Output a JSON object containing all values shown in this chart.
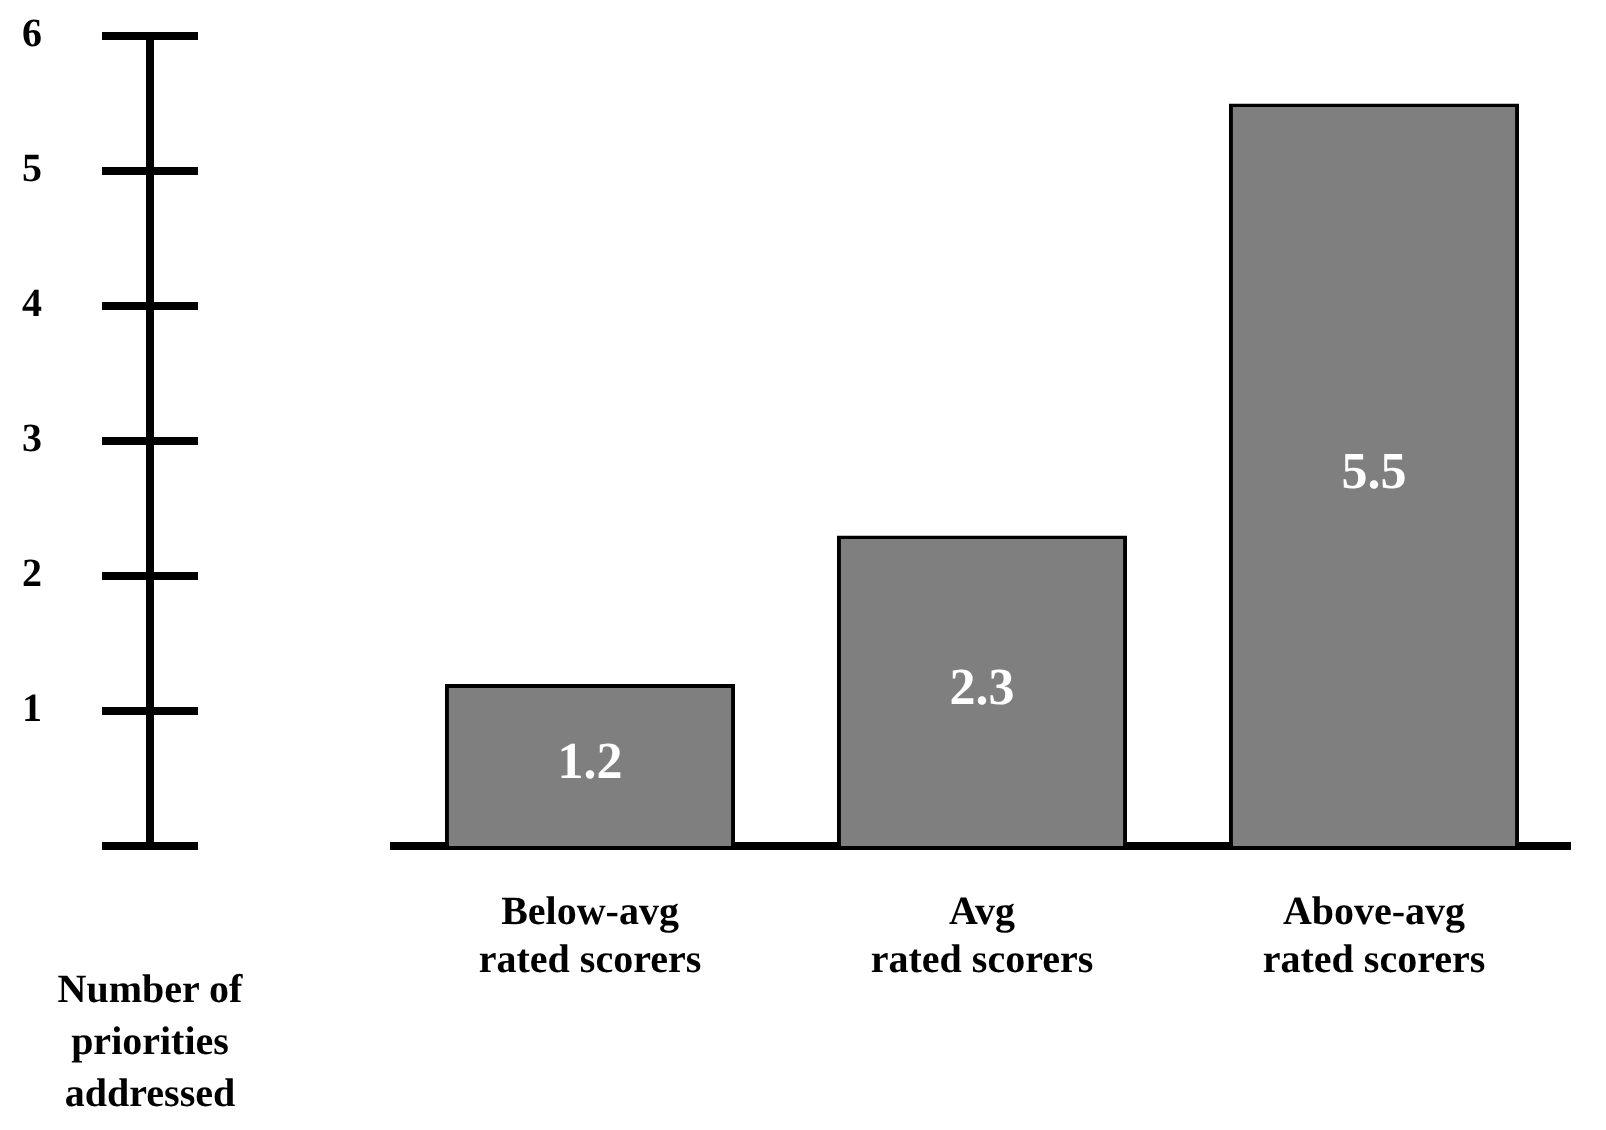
{
  "chart_data": {
    "type": "bar",
    "ylabel": "Number of priorities addressed",
    "categories": [
      "Below-avg\nrated scorers",
      "Avg\nrated scorers",
      "Above-avg\nrated scorers"
    ],
    "values": [
      1.2,
      2.3,
      5.5
    ],
    "color": "#7f7f7f",
    "data_labels": true,
    "ylim": [
      0,
      6
    ],
    "yticks": [
      {
        "value": 0,
        "label": null
      },
      1,
      2,
      3,
      4,
      5,
      6
    ]
  }
}
